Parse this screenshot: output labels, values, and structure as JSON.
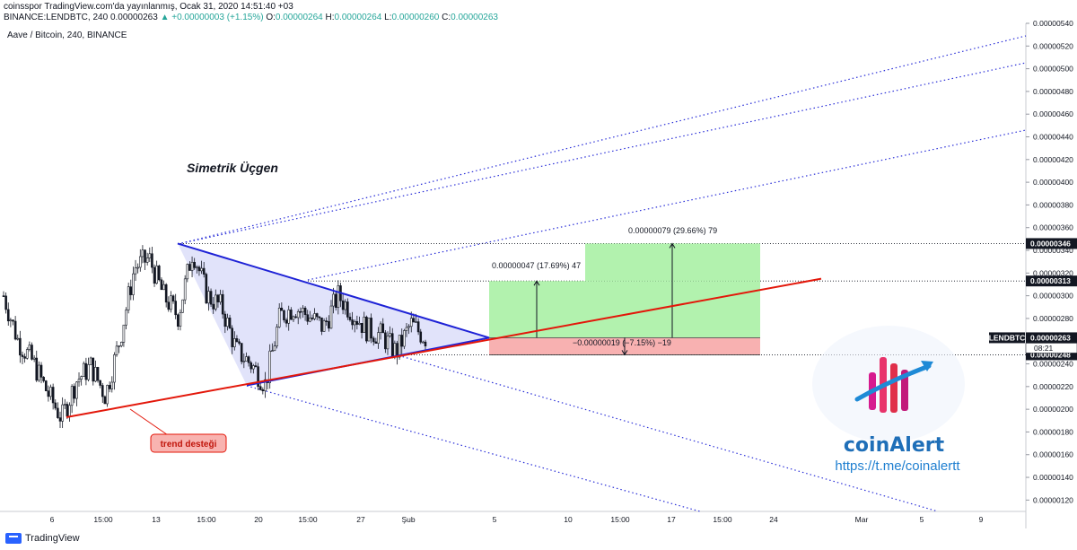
{
  "header": {
    "line1": "coinsspor TradingView.com'da yayınlanmış, Ocak 31, 2020 14:51:40 +03",
    "symbol": "BINANCE:LENDBTC, 240",
    "last": "0.00000263",
    "change": "▲ +0.00000003 (+1.15%)",
    "o_label": "O:",
    "o": "0.00000264",
    "h_label": "H:",
    "h": "0.00000264",
    "l_label": "L:",
    "l": "0.00000260",
    "c_label": "C:",
    "c": "0.00000263"
  },
  "footer": {
    "brand": "TradingView"
  },
  "colors": {
    "up": "#26a69a",
    "candle": "#131722",
    "blue": "#1e22d6",
    "red": "#e3170a",
    "profit": "#a5f0a0",
    "loss": "#f7a8a8",
    "triangle": "#c8ccf5"
  },
  "chart_data": {
    "type": "candlestick",
    "title": "Aave / Bitcoin, 240, BINANCE",
    "ylim": [
      1.1e-06,
      5.4e-06
    ],
    "y_ticks": [
      "0.00000120",
      "0.00000140",
      "0.00000160",
      "0.00000180",
      "0.00000200",
      "0.00000220",
      "0.00000240",
      "0.00000260",
      "0.00000280",
      "0.00000300",
      "0.00000320",
      "0.00000340",
      "0.00000360",
      "0.00000380",
      "0.00000400",
      "0.00000420",
      "0.00000440",
      "0.00000460",
      "0.00000480",
      "0.00000500",
      "0.00000520",
      "0.00000540"
    ],
    "x_ticks": [
      "6",
      "15:00",
      "13",
      "15:00",
      "20",
      "15:00",
      "27",
      "Şub",
      "5",
      "10",
      "15:00",
      "17",
      "15:00",
      "24",
      "Mar",
      "5",
      "9"
    ],
    "price_labels": [
      {
        "text": "0.00000346",
        "value": 3.46e-06
      },
      {
        "text": "0.00000313",
        "value": 3.13e-06
      },
      {
        "text": "0.00000263",
        "value": 2.63e-06
      },
      {
        "text": "0.00000248",
        "value": 2.48e-06
      }
    ],
    "symbol_badge": "LENDBTC",
    "countdown": "08:21",
    "candle_path": [
      3e-06,
      2.6e-06,
      2.42e-06,
      2.15e-06,
      1.92e-06,
      2.25e-06,
      2.38e-06,
      2.12e-06,
      2.62e-06,
      3.25e-06,
      3.33e-06,
      3e-06,
      2.82e-06,
      3.4e-06,
      3e-06,
      2.9e-06,
      2.52e-06,
      2.4e-06,
      2.22e-06,
      2.82e-06,
      2.9e-06,
      2.82e-06,
      2.72e-06,
      3e-06,
      2.85e-06,
      2.7e-06,
      2.65e-06,
      2.5e-06,
      2.75e-06,
      2.63e-06
    ],
    "annotations": {
      "pattern_title": "Simetrik Üçgen",
      "support_label": "trend desteği",
      "target2": "0.00000079 (29.66%) 79",
      "target1": "0.00000047 (17.69%) 47",
      "stop": "−0.00000019 (−7.15%) −19"
    },
    "watermark": {
      "brand": "coinAlert",
      "url": "https://t.me/coinalertt"
    }
  }
}
